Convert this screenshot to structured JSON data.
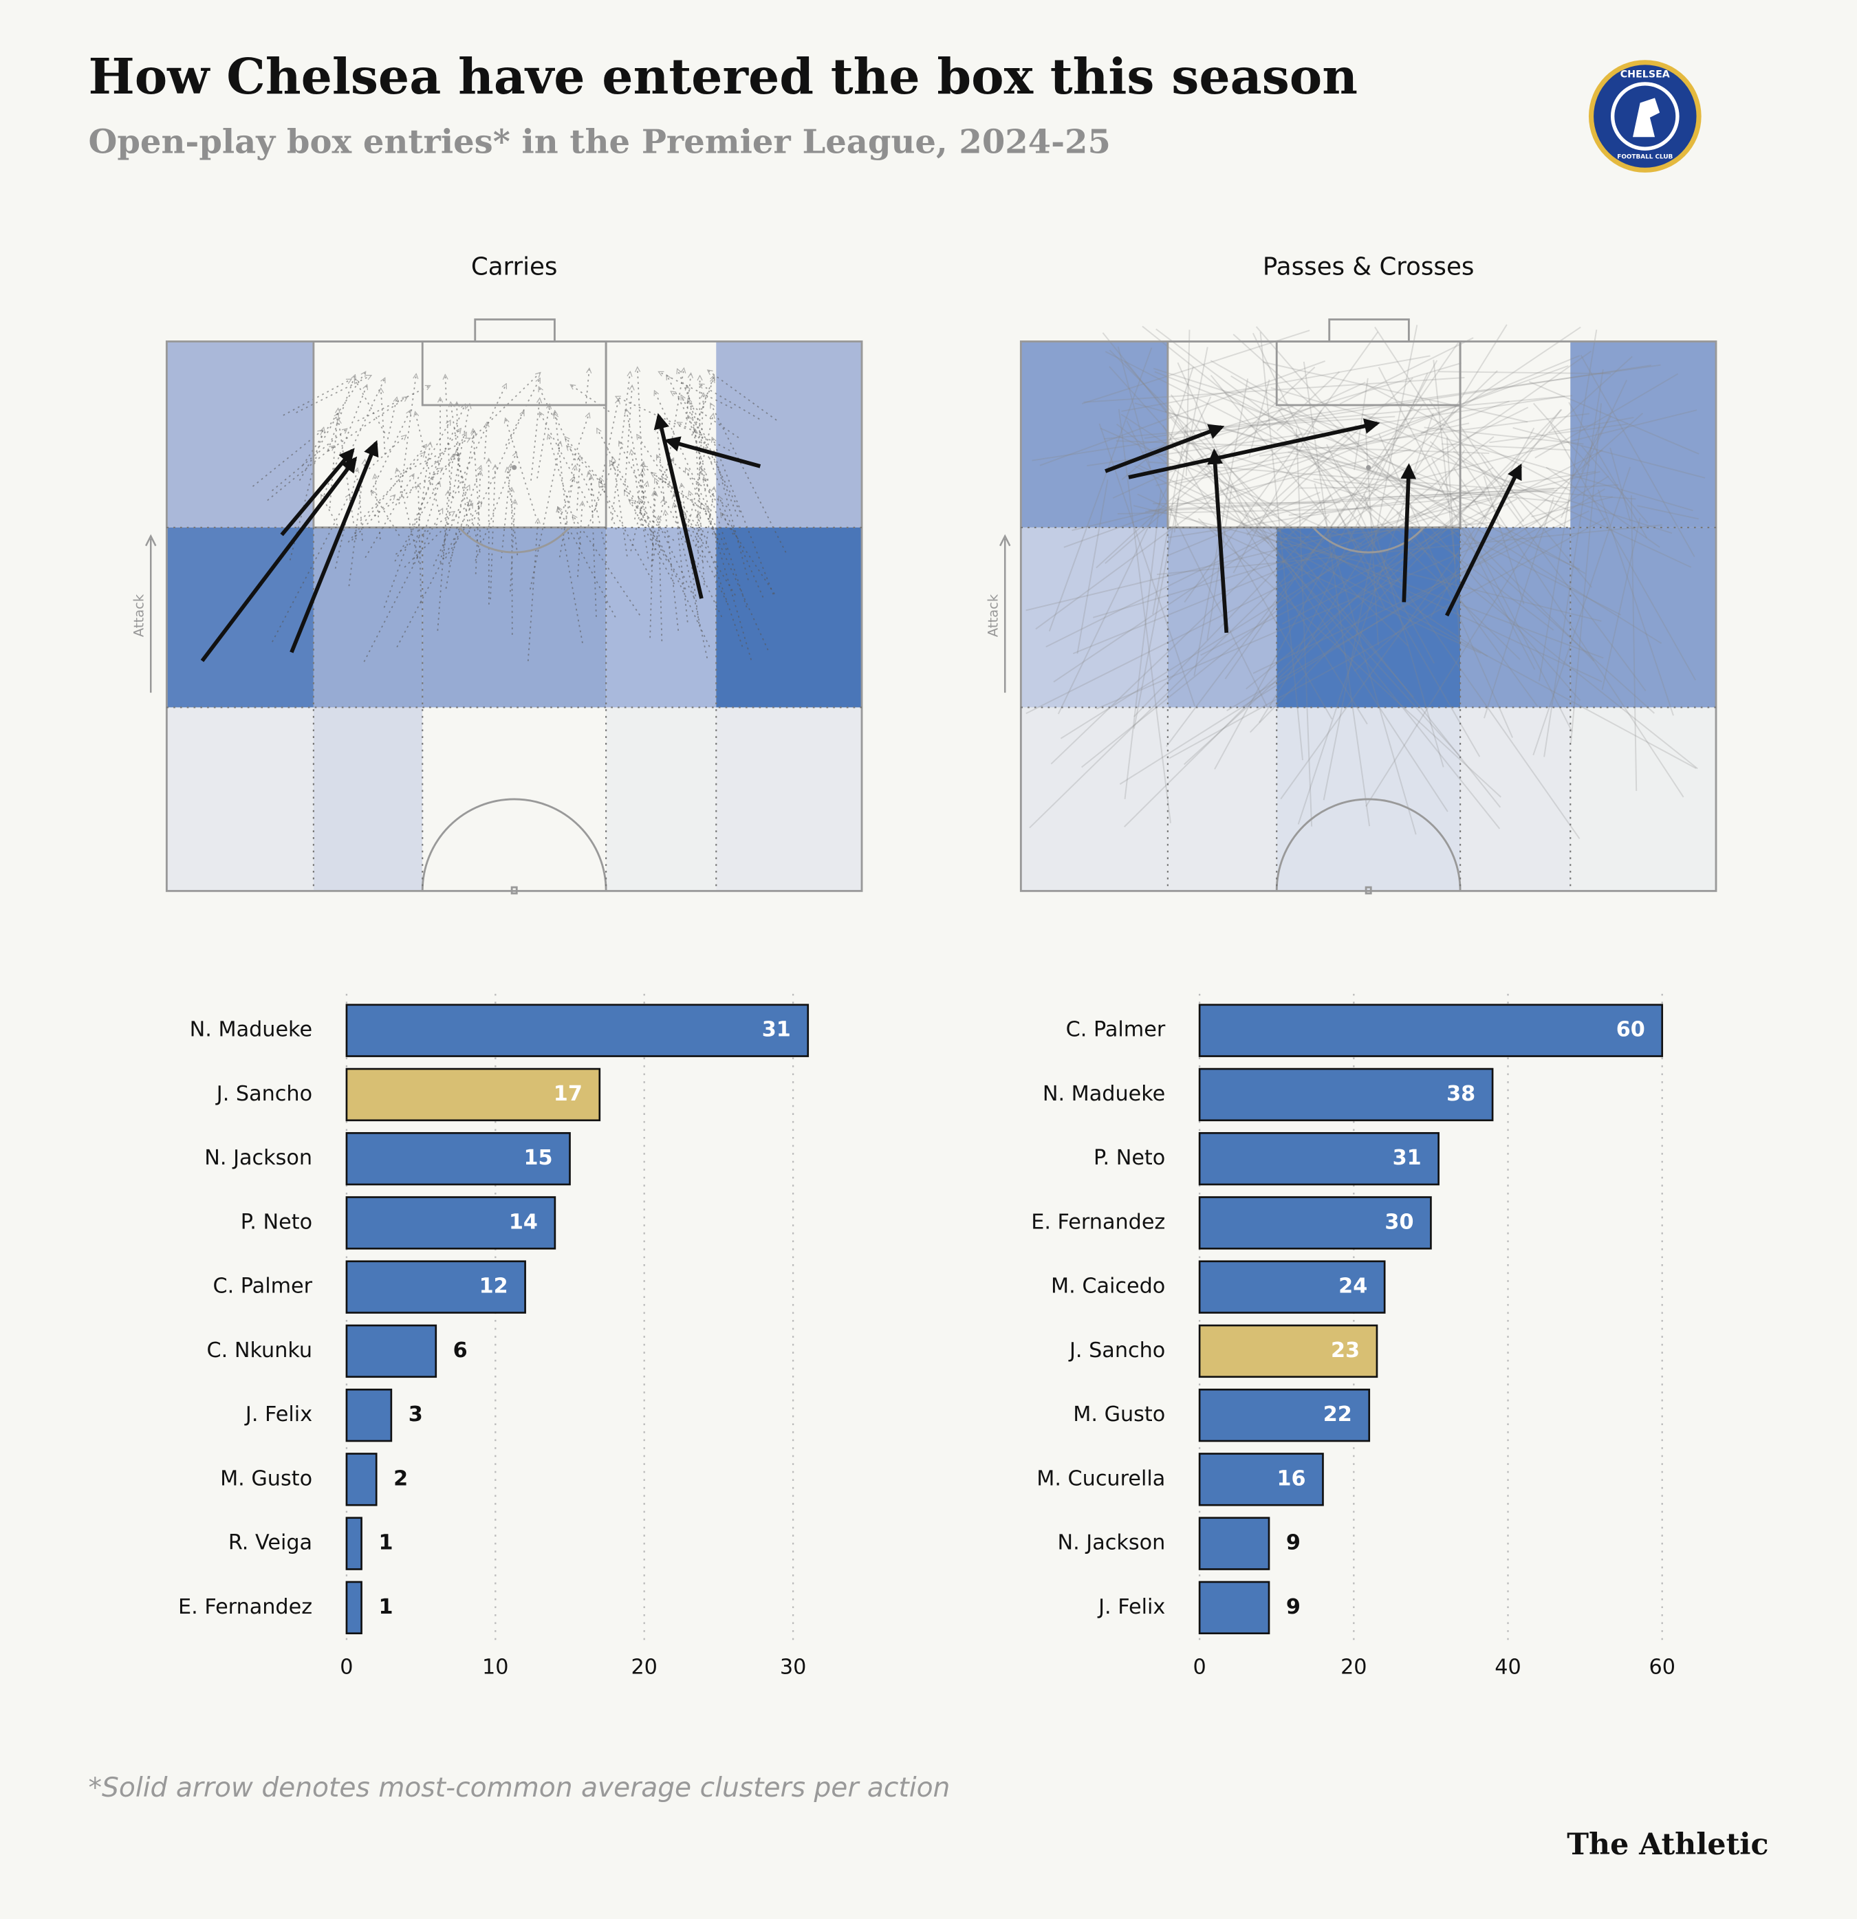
{
  "header": {
    "title": "How Chelsea have entered the box this season",
    "subtitle": "Open-play box entries* in the Premier League, 2024-25",
    "logo_top": "CHELSEA",
    "logo_bottom": "FOOTBALL CLUB"
  },
  "chart_data": [
    {
      "type": "pitch",
      "title": "Carries",
      "axis_label": "Attack"
    },
    {
      "type": "pitch",
      "title": "Passes & Crosses",
      "axis_label": "Attack"
    },
    {
      "type": "bar",
      "orientation": "horizontal",
      "categories": [
        "N. Madueke",
        "J. Sancho",
        "N. Jackson",
        "P. Neto",
        "C. Palmer",
        "C. Nkunku",
        "J. Felix",
        "M. Gusto",
        "R. Veiga",
        "E. Fernandez"
      ],
      "values": [
        31,
        17,
        15,
        14,
        12,
        6,
        3,
        2,
        1,
        1
      ],
      "colors": [
        "#4a78b8",
        "#d8bf73",
        "#4a78b8",
        "#4a78b8",
        "#4a78b8",
        "#4a78b8",
        "#4a78b8",
        "#4a78b8",
        "#4a78b8",
        "#4a78b8"
      ],
      "xlim": [
        0,
        31
      ],
      "xticks": [
        0,
        10,
        20,
        30
      ],
      "grid": true
    },
    {
      "type": "bar",
      "orientation": "horizontal",
      "categories": [
        "C. Palmer",
        "N. Madueke",
        "P. Neto",
        "E. Fernandez",
        "M. Caicedo",
        "J. Sancho",
        "M. Gusto",
        "M. Cucurella",
        "N. Jackson",
        "J. Felix"
      ],
      "values": [
        60,
        38,
        31,
        30,
        24,
        23,
        22,
        16,
        9,
        9
      ],
      "colors": [
        "#4a78b8",
        "#4a78b8",
        "#4a78b8",
        "#4a78b8",
        "#4a78b8",
        "#d8bf73",
        "#4a78b8",
        "#4a78b8",
        "#4a78b8",
        "#4a78b8"
      ],
      "xlim": [
        0,
        60
      ],
      "xticks": [
        0,
        20,
        40,
        60
      ],
      "grid": true
    }
  ],
  "footer": {
    "note": "*Solid arrow denotes most-common average clusters per action",
    "brand": "The Athletic"
  }
}
